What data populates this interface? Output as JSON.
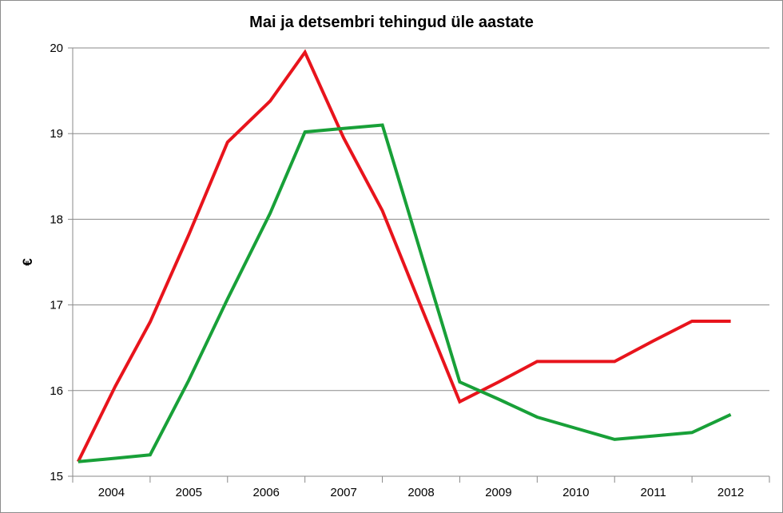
{
  "chart_data": {
    "type": "line",
    "title": "Mai ja detsembri tehingud üle aastate",
    "xlabel": "",
    "ylabel": "€",
    "ylim": [
      15,
      20
    ],
    "yticks": [
      15,
      16,
      17,
      18,
      19,
      20
    ],
    "categories": [
      "2004",
      "2005",
      "2006",
      "2007",
      "2008",
      "2009",
      "2010",
      "2011",
      "2012"
    ],
    "grid": true,
    "legend": "none",
    "series": [
      {
        "name": "red",
        "color": "#e8141c",
        "x": [
          0.07,
          0.55,
          1.0,
          1.5,
          2.0,
          2.55,
          3.0,
          3.5,
          4.0,
          4.5,
          5.0,
          5.5,
          6.0,
          6.5,
          7.0,
          7.5,
          8.0,
          8.5
        ],
        "y": [
          15.17,
          16.05,
          16.8,
          17.82,
          18.9,
          19.38,
          19.95,
          18.95,
          18.1,
          16.98,
          15.87,
          16.1,
          16.34,
          16.34,
          16.34,
          16.58,
          16.81,
          16.81
        ]
      },
      {
        "name": "green",
        "color": "#18a038",
        "x": [
          0.07,
          0.55,
          1.0,
          1.5,
          2.0,
          2.55,
          3.0,
          3.5,
          4.0,
          4.5,
          5.0,
          5.5,
          6.0,
          6.5,
          7.0,
          7.5,
          8.0,
          8.5
        ],
        "y": [
          15.17,
          15.21,
          15.25,
          16.12,
          17.07,
          18.07,
          19.02,
          19.06,
          19.1,
          17.6,
          16.1,
          15.9,
          15.69,
          15.56,
          15.43,
          15.47,
          15.51,
          15.72
        ]
      }
    ]
  }
}
